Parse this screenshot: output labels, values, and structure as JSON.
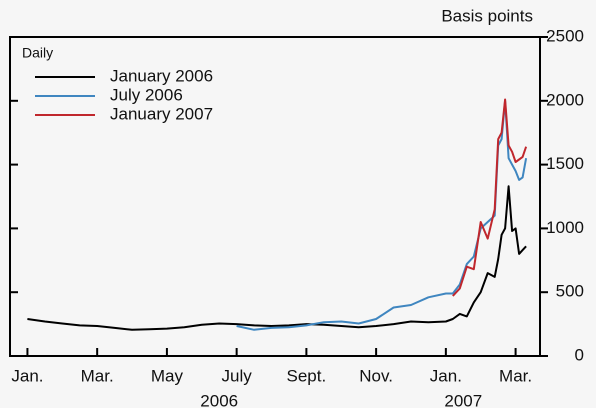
{
  "chart_data": {
    "type": "line",
    "y_axis_label": "Basis points",
    "annotation": "Daily",
    "x": [
      0,
      0.5,
      1,
      1.5,
      2,
      2.5,
      3,
      3.5,
      4,
      4.5,
      5,
      5.5,
      6,
      6.5,
      7,
      7.5,
      8,
      8.5,
      9,
      9.5,
      10,
      10.5,
      11,
      11.5,
      12,
      12.2,
      12.4,
      12.6,
      12.8,
      13.0,
      13.2,
      13.4,
      13.5,
      13.6,
      13.7,
      13.8,
      13.9,
      14.0,
      14.1,
      14.2,
      14.3
    ],
    "series": [
      {
        "name": "January 2006",
        "color": "#000000",
        "values": [
          290,
          270,
          255,
          240,
          235,
          220,
          205,
          210,
          215,
          225,
          245,
          255,
          250,
          240,
          235,
          240,
          250,
          245,
          235,
          225,
          235,
          250,
          270,
          265,
          270,
          290,
          330,
          310,
          420,
          500,
          650,
          620,
          760,
          950,
          1000,
          1330,
          980,
          1000,
          800,
          830,
          860
        ]
      },
      {
        "name": "July 2006",
        "color": "#3f86c0",
        "values": [
          null,
          null,
          null,
          null,
          null,
          null,
          null,
          null,
          null,
          null,
          null,
          null,
          235,
          205,
          220,
          225,
          240,
          265,
          270,
          255,
          290,
          380,
          400,
          460,
          490,
          490,
          560,
          720,
          780,
          1000,
          1050,
          1100,
          1650,
          1700,
          2000,
          1550,
          1500,
          1450,
          1380,
          1400,
          1550
        ]
      },
      {
        "name": "January 2007",
        "color": "#c0272d",
        "values": [
          null,
          null,
          null,
          null,
          null,
          null,
          null,
          null,
          null,
          null,
          null,
          null,
          null,
          null,
          null,
          null,
          null,
          null,
          null,
          null,
          null,
          null,
          null,
          null,
          null,
          470,
          530,
          700,
          680,
          1050,
          920,
          1150,
          1700,
          1750,
          2010,
          1650,
          1600,
          1520,
          1540,
          1560,
          1640
        ]
      }
    ],
    "xlim": [
      -0.5,
      14.7
    ],
    "xticks": [
      {
        "value": 0,
        "label": "Jan."
      },
      {
        "value": 2,
        "label": "Mar."
      },
      {
        "value": 4,
        "label": "May"
      },
      {
        "value": 6,
        "label": "July"
      },
      {
        "value": 8,
        "label": "Sept."
      },
      {
        "value": 10,
        "label": "Nov."
      },
      {
        "value": 12,
        "label": "Jan."
      },
      {
        "value": 14,
        "label": "Mar."
      }
    ],
    "year_labels": [
      {
        "value": 5.5,
        "label": "2006"
      },
      {
        "value": 12.5,
        "label": "2007"
      }
    ],
    "ylim": [
      0,
      2500
    ],
    "yticks": [
      0,
      500,
      1000,
      1500,
      2000,
      2500
    ]
  }
}
